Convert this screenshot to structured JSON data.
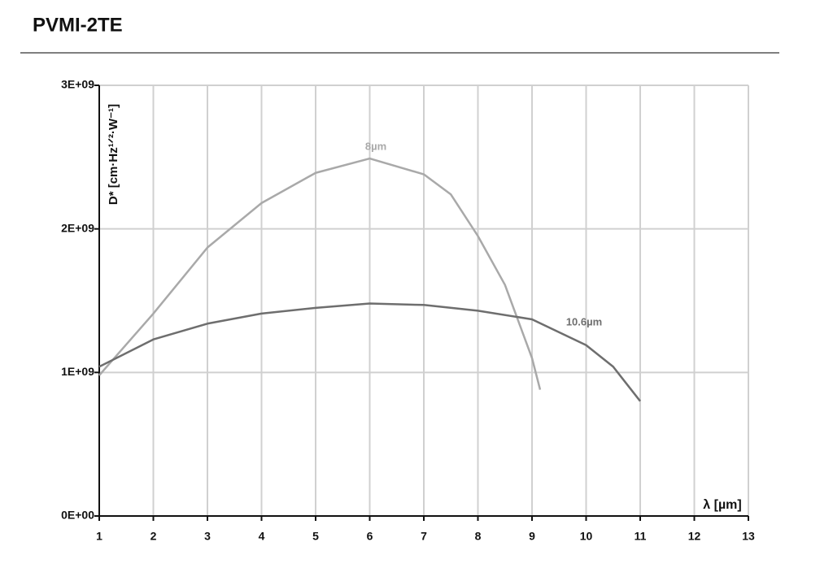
{
  "header": {
    "title": "PVMI-2TE"
  },
  "chart_data": {
    "type": "line",
    "xlabel": "λ [µm]",
    "ylabel": "D* [cm·Hz¹ᐟ²·W⁻¹]",
    "xlim": [
      1,
      13
    ],
    "xticks": [
      1,
      2,
      3,
      4,
      5,
      6,
      7,
      8,
      9,
      10,
      11,
      12,
      13
    ],
    "ylim": [
      0,
      3000000000
    ],
    "yticks": [
      {
        "value": 0,
        "label": "0E+00"
      },
      {
        "value": 1000000000,
        "label": "1E+09"
      },
      {
        "value": 2000000000,
        "label": "2E+09"
      },
      {
        "value": 3000000000,
        "label": "3E+09"
      }
    ],
    "grid": true,
    "series": [
      {
        "name": "8µm",
        "color": "#a9a9a9",
        "x": [
          1,
          2,
          3,
          4,
          5,
          6,
          7,
          7.5,
          8,
          8.5,
          9,
          9.15
        ],
        "values": [
          980000000,
          1410000000,
          1870000000,
          2180000000,
          2390000000,
          2490000000,
          2380000000,
          2240000000,
          1950000000,
          1610000000,
          1100000000,
          880000000
        ]
      },
      {
        "name": "10.6µm",
        "color": "#6e6e6e",
        "x": [
          1,
          2,
          3,
          4,
          5,
          6,
          7,
          8,
          9,
          10,
          10.5,
          11
        ],
        "values": [
          1040000000,
          1230000000,
          1340000000,
          1410000000,
          1450000000,
          1480000000,
          1470000000,
          1430000000,
          1370000000,
          1190000000,
          1040000000,
          800000000
        ]
      }
    ]
  }
}
